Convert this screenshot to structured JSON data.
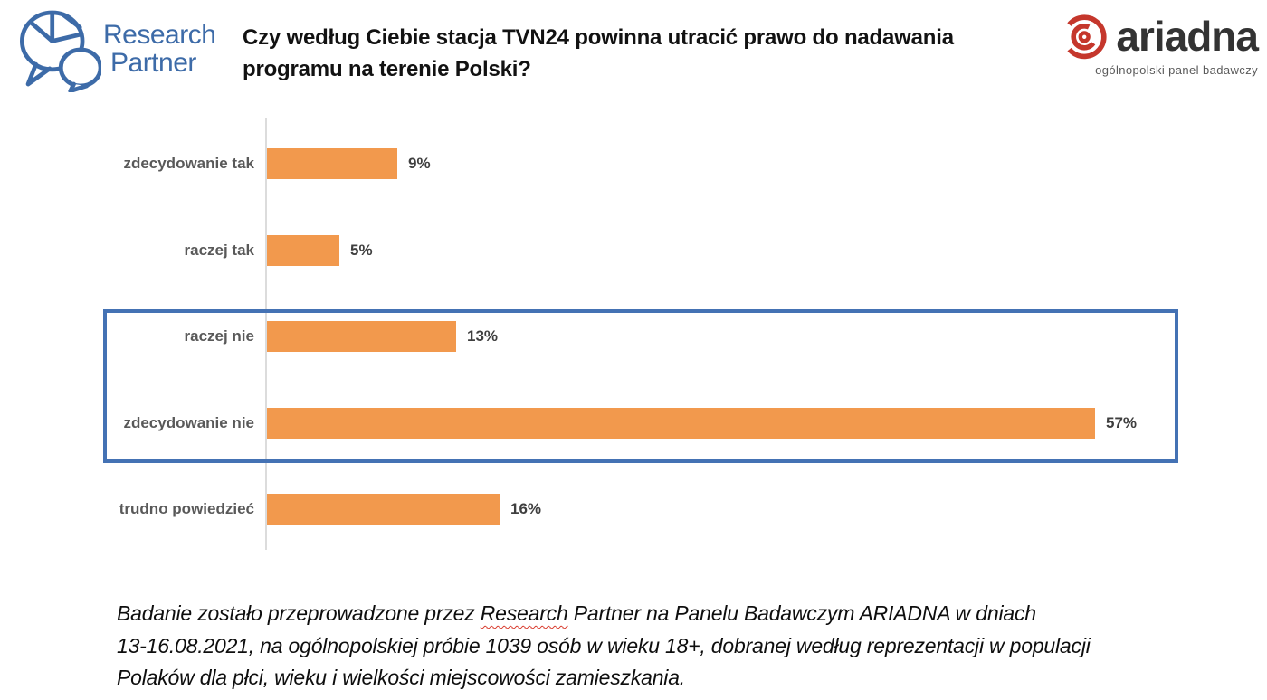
{
  "header": {
    "research_partner": {
      "line1": "Research",
      "line2": "Partner"
    },
    "title_line1": "Czy według Ciebie stacja TVN24 powinna utracić prawo do nadawania",
    "title_line2": "programu na terenie Polski?",
    "ariadna": {
      "wordmark": "ariadna",
      "subtitle": "ogólnopolski panel badawczy"
    }
  },
  "chart_data": {
    "type": "bar",
    "orientation": "horizontal",
    "title": "Czy według Ciebie stacja TVN24 powinna utracić prawo do nadawania programu na terenie Polski?",
    "categories": [
      "zdecydowanie tak",
      "raczej tak",
      "raczej nie",
      "zdecydowanie nie",
      "trudno powiedzieć"
    ],
    "values": [
      9,
      5,
      13,
      57,
      16
    ],
    "value_labels": [
      "9%",
      "5%",
      "13%",
      "57%",
      "16%"
    ],
    "xlim": [
      0,
      60
    ],
    "grid": false,
    "legend": false,
    "bar_color": "#F2994D",
    "highlighted_categories": [
      "raczej nie",
      "zdecydowanie nie"
    ],
    "highlight_border_color": "#4472B4"
  },
  "footer": {
    "line1_before": "Badanie zostało przeprowadzone przez ",
    "line1_misspelled": "Research",
    "line1_after": " Partner na Panelu Badawczym ARIADNA w dniach",
    "line2": "13-16.08.2021, na ogólnopolskiej próbie 1039 osób w wieku 18+, dobranej według reprezentacji w populacji",
    "line3": "Polaków dla płci, wieku i wielkości miejscowości zamieszkania."
  },
  "colors": {
    "bar": "#F2994D",
    "highlight_border": "#4472B4",
    "brand_blue": "#3D6BA8",
    "ariadna_red": "#C5372C",
    "category_label": "#595959",
    "axis": "#DCDCDC"
  }
}
